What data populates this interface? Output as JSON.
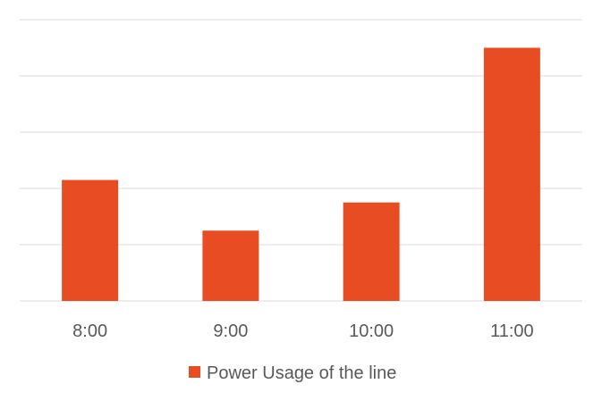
{
  "chart_data": {
    "type": "bar",
    "categories": [
      "8:00",
      "9:00",
      "10:00",
      "11:00"
    ],
    "series": [
      {
        "name": "Power Usage of the line",
        "values": [
          2.15,
          1.25,
          1.75,
          4.5
        ],
        "color": "#E84C22"
      }
    ],
    "ylim": [
      0,
      5
    ],
    "grid": true,
    "y_tick_labels_visible": false,
    "legend": "bottom",
    "colors": {
      "bar": "#E84C22",
      "grid": "#D9D9D9",
      "text": "#595959"
    }
  }
}
